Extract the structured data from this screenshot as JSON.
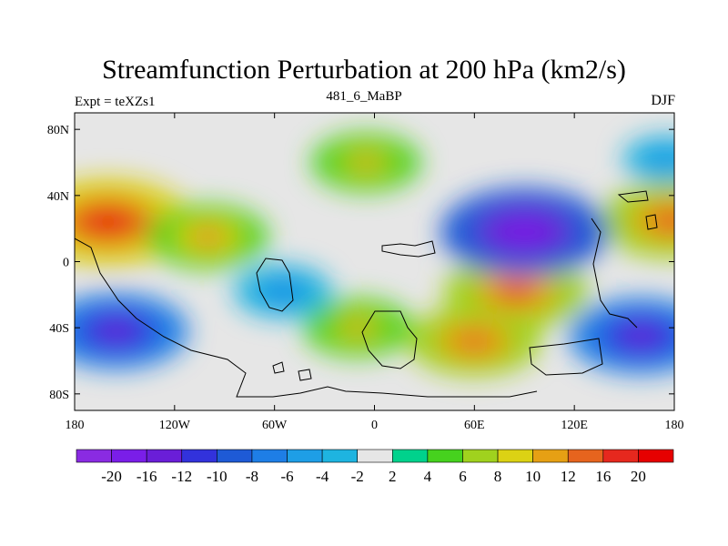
{
  "chart_data": {
    "type": "heatmap",
    "title": "Streamfunction Perturbation at 200 hPa (km2/s)",
    "subtitle_left": "Expt = teXZs1",
    "subtitle_center": "481_6_MaBP",
    "subtitle_right": "DJF",
    "x_ticks": [
      "180",
      "120W",
      "60W",
      "0",
      "60E",
      "120E",
      "180"
    ],
    "x_tick_values": [
      -180,
      -120,
      -60,
      0,
      60,
      120,
      180
    ],
    "y_ticks": [
      "80N",
      "40N",
      "0",
      "40S",
      "80S"
    ],
    "y_tick_values": [
      80,
      40,
      0,
      -40,
      -80
    ],
    "xlim": [
      -180,
      180
    ],
    "ylim": [
      -90,
      90
    ],
    "colorbar": {
      "labels": [
        "-20",
        "-16",
        "-12",
        "-10",
        "-8",
        "-6",
        "-4",
        "-2",
        "2",
        "4",
        "6",
        "8",
        "10",
        "12",
        "16",
        "20"
      ],
      "colors": [
        "#8a2be2",
        "#7a1ee8",
        "#6a1ed8",
        "#3232dc",
        "#1e5ad6",
        "#1e7ee6",
        "#1e9ee6",
        "#1eb4e0",
        "#e6e6e6",
        "#00d28c",
        "#46d21e",
        "#a0d21e",
        "#dcd214",
        "#e6a014",
        "#e6641e",
        "#e6281e",
        "#e60000"
      ]
    },
    "features": [
      {
        "lon": -160,
        "lat": 24,
        "value": 20
      },
      {
        "lon": -100,
        "lat": 15,
        "value": 12
      },
      {
        "lon": -5,
        "lat": 60,
        "value": 10
      },
      {
        "lon": 85,
        "lat": -18,
        "value": 16
      },
      {
        "lon": 60,
        "lat": -48,
        "value": 14
      },
      {
        "lon": -10,
        "lat": -40,
        "value": 10
      },
      {
        "lon": 178,
        "lat": 25,
        "value": 16
      },
      {
        "lon": 90,
        "lat": 18,
        "value": -20
      },
      {
        "lon": -155,
        "lat": -42,
        "value": -16
      },
      {
        "lon": 160,
        "lat": -45,
        "value": -16
      },
      {
        "lon": -55,
        "lat": -18,
        "value": -8
      },
      {
        "lon": 175,
        "lat": 62,
        "value": -6
      }
    ]
  }
}
